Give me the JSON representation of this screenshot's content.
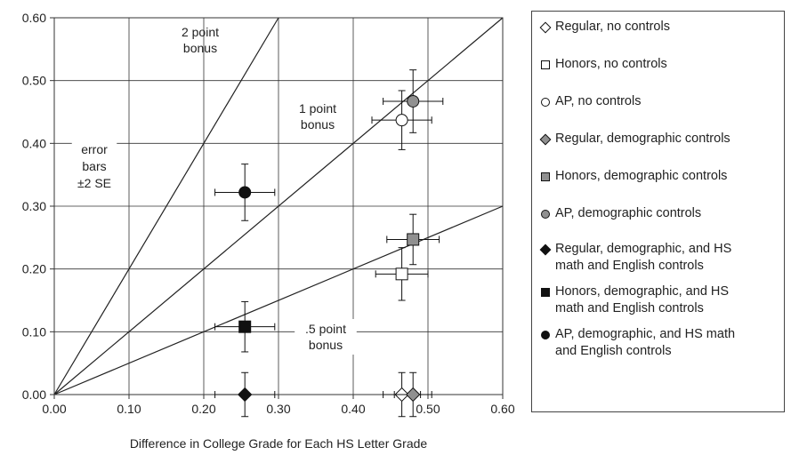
{
  "chart_data": {
    "type": "scatter",
    "xlabel": "Difference in College Grade for Each HS Letter Grade",
    "ylabel": "",
    "xlim": [
      0,
      0.6
    ],
    "ylim": [
      0,
      0.6
    ],
    "x_ticks": [
      "0.00",
      "0.10",
      "0.20",
      "0.30",
      "0.40",
      "0.50",
      "0.60"
    ],
    "y_ticks": [
      "0.00",
      "0.10",
      "0.20",
      "0.30",
      "0.40",
      "0.50",
      "0.60"
    ],
    "grid": true,
    "legend_position": "right",
    "reference_lines": [
      {
        "label": "2 point\nbonus",
        "slope": 2
      },
      {
        "label": "1 point\nbonus",
        "slope": 1
      },
      {
        "label": ".5 point\nbonus",
        "slope": 0.5
      }
    ],
    "annotation": "error\nbars\n±2 SE",
    "series": [
      {
        "name": "Regular, no controls",
        "marker": "diamond",
        "fill": "white",
        "x": 0.465,
        "y": 0.0,
        "x_err": 0.025,
        "y_err": 0.035
      },
      {
        "name": "Honors, no controls",
        "marker": "square",
        "fill": "white",
        "x": 0.465,
        "y": 0.192,
        "x_err": 0.035,
        "y_err": 0.042
      },
      {
        "name": "AP, no controls",
        "marker": "circle",
        "fill": "white",
        "x": 0.465,
        "y": 0.437,
        "x_err": 0.04,
        "y_err": 0.047
      },
      {
        "name": "Regular, demographic controls",
        "marker": "diamond",
        "fill": "gray",
        "x": 0.48,
        "y": 0.0,
        "x_err": 0.025,
        "y_err": 0.035
      },
      {
        "name": "Honors, demographic controls",
        "marker": "square",
        "fill": "gray",
        "x": 0.48,
        "y": 0.247,
        "x_err": 0.035,
        "y_err": 0.04
      },
      {
        "name": "AP, demographic controls",
        "marker": "circle",
        "fill": "gray",
        "x": 0.48,
        "y": 0.467,
        "x_err": 0.04,
        "y_err": 0.05
      },
      {
        "name": "Regular, demographic, and HS\nmath and English controls",
        "marker": "diamond",
        "fill": "black",
        "x": 0.255,
        "y": 0.0,
        "x_err": 0.04,
        "y_err": 0.035
      },
      {
        "name": "Honors, demographic, and HS\nmath and English controls",
        "marker": "square",
        "fill": "black",
        "x": 0.255,
        "y": 0.108,
        "x_err": 0.04,
        "y_err": 0.04
      },
      {
        "name": "AP, demographic, and HS math\nand English controls",
        "marker": "circle",
        "fill": "black",
        "x": 0.255,
        "y": 0.322,
        "x_err": 0.04,
        "y_err": 0.045
      }
    ],
    "colors": {
      "white": "#ffffff",
      "gray": "#909090",
      "black": "#111111",
      "line": "#222222",
      "grid": "#333333"
    }
  }
}
